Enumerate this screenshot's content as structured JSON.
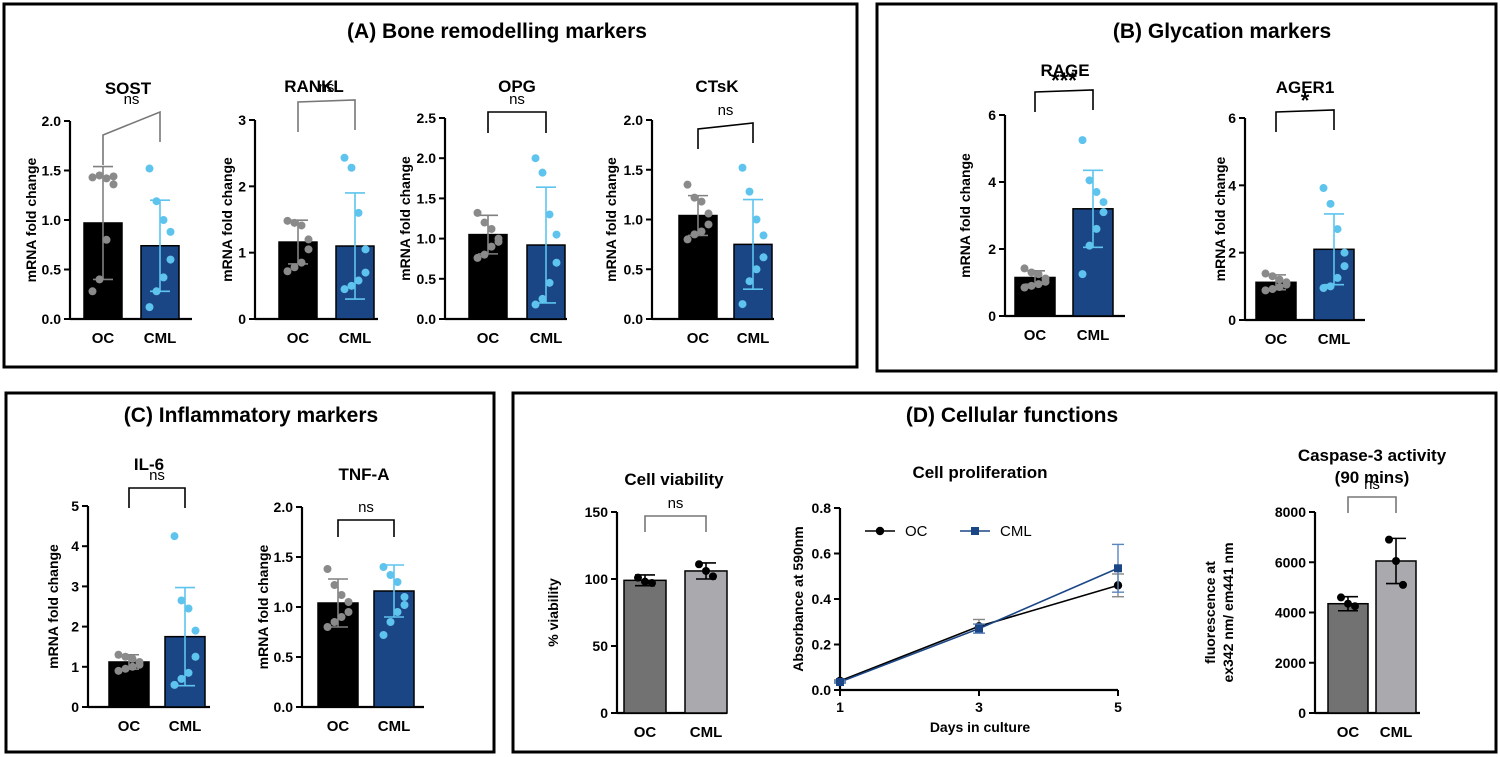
{
  "panels": [
    {
      "header": "(A) Bone remodelling markers"
    },
    {
      "header": "(B) Glycation markers"
    },
    {
      "header": "(C) Inflammatory  markers"
    },
    {
      "header": "(D) Cellular functions"
    }
  ],
  "chart_data": [
    {
      "type": "bar",
      "panel": "A",
      "title": "SOST",
      "ylabel": "mRNA fold change",
      "categories": [
        "OC",
        "CML"
      ],
      "ylim": [
        0,
        2.0
      ],
      "yticks": [
        "0.0",
        "0.5",
        "1.0",
        "1.5",
        "2.0"
      ],
      "yticks_values": [
        0,
        0.5,
        1.0,
        1.5,
        2.0
      ],
      "values": [
        0.97,
        0.74
      ],
      "errors": [
        0.57,
        0.46
      ],
      "points": [
        [
          1.43,
          1.45,
          1.42,
          1.44,
          1.36,
          0.8,
          0.4,
          0.28
        ],
        [
          1.52,
          1.19,
          1.0,
          0.88,
          0.6,
          0.42,
          0.28,
          0.12
        ]
      ],
      "significance": "ns",
      "colors": [
        "#000000",
        "#1b4686"
      ],
      "point_colors": [
        "#8a8a8a",
        "#5ec4ee"
      ],
      "err_colors": [
        "#808080",
        "#5ec4ee"
      ]
    },
    {
      "type": "bar",
      "panel": "A",
      "title": "RANKL",
      "ylabel": "mRNA fold change",
      "categories": [
        "OC",
        "CML"
      ],
      "ylim": [
        0,
        3
      ],
      "yticks": [
        "0",
        "1",
        "2",
        "3"
      ],
      "yticks_values": [
        0,
        1,
        2,
        3
      ],
      "values": [
        1.16,
        1.1
      ],
      "errors": [
        0.33,
        0.8
      ],
      "points": [
        [
          1.48,
          1.45,
          1.41,
          1.2,
          1.05,
          0.85,
          0.78,
          0.72
        ],
        [
          2.43,
          2.28,
          1.6,
          1.05,
          0.7,
          0.58,
          0.5,
          0.45
        ]
      ],
      "significance": "ns",
      "colors": [
        "#000000",
        "#1b4686"
      ],
      "point_colors": [
        "#8a8a8a",
        "#5ec4ee"
      ],
      "err_colors": [
        "#808080",
        "#5ec4ee"
      ]
    },
    {
      "type": "bar",
      "panel": "A",
      "title": "OPG",
      "ylabel": "mRNA fold change",
      "categories": [
        "OC",
        "CML"
      ],
      "ylim": [
        0,
        2.5
      ],
      "yticks": [
        "0.0",
        "0.5",
        "1.0",
        "1.5",
        "2.0",
        "2.5"
      ],
      "yticks_values": [
        0,
        0.5,
        1.0,
        1.5,
        2.0,
        2.5
      ],
      "values": [
        1.05,
        0.92
      ],
      "errors": [
        0.24,
        0.72
      ],
      "points": [
        [
          1.32,
          1.2,
          1.12,
          1.0,
          0.96,
          0.9,
          0.8,
          0.76
        ],
        [
          2.0,
          1.82,
          1.3,
          1.05,
          0.7,
          0.45,
          0.25,
          0.18
        ]
      ],
      "significance": "ns",
      "colors": [
        "#000000",
        "#1b4686"
      ],
      "point_colors": [
        "#8a8a8a",
        "#5ec4ee"
      ],
      "err_colors": [
        "#808080",
        "#5ec4ee"
      ]
    },
    {
      "type": "bar",
      "panel": "A",
      "title": "CTsK",
      "ylabel": "mRNA fold change",
      "categories": [
        "OC",
        "CML"
      ],
      "ylim": [
        0,
        2.0
      ],
      "yticks": [
        "0.0",
        "0.5",
        "1.0",
        "1.5",
        "2.0"
      ],
      "yticks_values": [
        0,
        0.5,
        1.0,
        1.5,
        2.0
      ],
      "values": [
        1.04,
        0.75
      ],
      "errors": [
        0.2,
        0.45
      ],
      "points": [
        [
          1.35,
          1.22,
          1.18,
          1.06,
          0.95,
          0.88,
          0.85,
          0.8
        ],
        [
          1.52,
          1.28,
          1.0,
          0.84,
          0.62,
          0.5,
          0.38,
          0.15
        ]
      ],
      "significance": "ns",
      "colors": [
        "#000000",
        "#1b4686"
      ],
      "point_colors": [
        "#8a8a8a",
        "#5ec4ee"
      ],
      "err_colors": [
        "#808080",
        "#5ec4ee"
      ]
    },
    {
      "type": "bar",
      "panel": "B",
      "title": "RAGE",
      "ylabel": "mRNA fold change",
      "categories": [
        "OC",
        "CML"
      ],
      "ylim": [
        0,
        6
      ],
      "yticks": [
        "0",
        "2",
        "4",
        "6"
      ],
      "yticks_values": [
        0,
        2,
        4,
        6
      ],
      "values": [
        1.15,
        3.2
      ],
      "errors": [
        0.2,
        1.15
      ],
      "points": [
        [
          1.42,
          1.3,
          1.25,
          1.12,
          1.02,
          0.95,
          0.9,
          0.85
        ],
        [
          5.25,
          4.05,
          3.7,
          3.4,
          3.1,
          2.6,
          2.1,
          1.25
        ]
      ],
      "significance": "***",
      "colors": [
        "#000000",
        "#1b4686"
      ],
      "point_colors": [
        "#8a8a8a",
        "#5ec4ee"
      ],
      "err_colors": [
        "#808080",
        "#5ec4ee"
      ]
    },
    {
      "type": "bar",
      "panel": "B",
      "title": "AGER1",
      "ylabel": "mRNA fold change",
      "categories": [
        "OC",
        "CML"
      ],
      "ylim": [
        0,
        6
      ],
      "yticks": [
        "0",
        "2",
        "4",
        "6"
      ],
      "yticks_values": [
        0,
        2,
        4,
        6
      ],
      "values": [
        1.12,
        2.1
      ],
      "errors": [
        0.22,
        1.05
      ],
      "points": [
        [
          1.38,
          1.3,
          1.2,
          1.12,
          1.05,
          0.98,
          0.92,
          0.88
        ],
        [
          3.92,
          3.45,
          2.7,
          2.0,
          1.6,
          1.25,
          1.0,
          0.95
        ]
      ],
      "significance": "*",
      "colors": [
        "#000000",
        "#1b4686"
      ],
      "point_colors": [
        "#8a8a8a",
        "#5ec4ee"
      ],
      "err_colors": [
        "#808080",
        "#5ec4ee"
      ]
    },
    {
      "type": "bar",
      "panel": "C",
      "title": "IL-6",
      "ylabel": "mRNA fold change",
      "categories": [
        "OC",
        "CML"
      ],
      "ylim": [
        0,
        5
      ],
      "yticks": [
        "0",
        "1",
        "2",
        "3",
        "4",
        "5"
      ],
      "yticks_values": [
        0,
        1,
        2,
        3,
        4,
        5
      ],
      "values": [
        1.12,
        1.75
      ],
      "errors": [
        0.18,
        1.22
      ],
      "points": [
        [
          1.3,
          1.25,
          1.2,
          1.12,
          1.05,
          1.0,
          0.95,
          0.9
        ],
        [
          4.25,
          2.65,
          2.45,
          1.9,
          1.25,
          0.85,
          0.7,
          0.55
        ]
      ],
      "significance": "ns",
      "colors": [
        "#000000",
        "#1b4686"
      ],
      "point_colors": [
        "#8a8a8a",
        "#5ec4ee"
      ],
      "err_colors": [
        "#808080",
        "#5ec4ee"
      ]
    },
    {
      "type": "bar",
      "panel": "C",
      "title": "TNF-A",
      "ylabel": "mRNA fold change",
      "categories": [
        "OC",
        "CML"
      ],
      "ylim": [
        0,
        2.0
      ],
      "yticks": [
        "0.0",
        "0.5",
        "1.0",
        "1.5",
        "2.0"
      ],
      "yticks_values": [
        0,
        0.5,
        1.0,
        1.5,
        2.0
      ],
      "values": [
        1.04,
        1.16
      ],
      "errors": [
        0.24,
        0.26
      ],
      "points": [
        [
          1.38,
          1.22,
          1.12,
          1.05,
          0.95,
          0.9,
          0.85,
          0.8
        ],
        [
          1.4,
          1.32,
          1.25,
          1.1,
          1.02,
          0.95,
          0.85,
          0.72
        ]
      ],
      "significance": "ns",
      "colors": [
        "#000000",
        "#1b4686"
      ],
      "point_colors": [
        "#8a8a8a",
        "#5ec4ee"
      ],
      "err_colors": [
        "#808080",
        "#5ec4ee"
      ]
    },
    {
      "type": "bar",
      "panel": "D",
      "title": "Cell viability",
      "ylabel": "% viability",
      "categories": [
        "OC",
        "CML"
      ],
      "ylim": [
        0,
        150
      ],
      "yticks": [
        "0",
        "50",
        "100",
        "150"
      ],
      "yticks_values": [
        0,
        50,
        100,
        150
      ],
      "values": [
        99,
        106
      ],
      "errors": [
        4,
        6
      ],
      "points": [
        [
          101,
          98,
          97
        ],
        [
          111,
          106,
          102
        ]
      ],
      "significance": "ns",
      "colors": [
        "#727272",
        "#a9a9ae"
      ],
      "point_colors": [
        "#000000",
        "#000000"
      ],
      "err_colors": [
        "#000000",
        "#000000"
      ]
    },
    {
      "type": "line",
      "panel": "D",
      "title": "Cell proliferation",
      "xlabel": "Days in culture",
      "ylabel": "Absorbance at 590nm",
      "x": [
        1,
        3,
        5
      ],
      "xticks": [
        "1",
        "3",
        "5"
      ],
      "xlim": [
        1,
        5
      ],
      "ylim": [
        0,
        0.8
      ],
      "yticks": [
        "0.0",
        "0.2",
        "0.4",
        "0.6",
        "0.8"
      ],
      "yticks_values": [
        0,
        0.2,
        0.4,
        0.6,
        0.8
      ],
      "series": [
        {
          "name": "OC",
          "values": [
            0.04,
            0.28,
            0.46
          ],
          "errors": [
            0.005,
            0.03,
            0.05
          ],
          "color": "#000000",
          "marker": "circle"
        },
        {
          "name": "CML",
          "values": [
            0.035,
            0.27,
            0.535
          ],
          "errors": [
            0.005,
            0.02,
            0.105
          ],
          "color": "#1b4686",
          "marker": "square"
        }
      ],
      "legend_placement": "top"
    },
    {
      "type": "bar",
      "panel": "D",
      "title": "Caspase-3 activity",
      "subtitle": "(90 mins)",
      "ylabel": "fluorescence at",
      "ylabel2": "ex342 nm/ em441 nm",
      "categories": [
        "OC",
        "CML"
      ],
      "ylim": [
        0,
        8000
      ],
      "yticks": [
        "0",
        "2000",
        "4000",
        "6000",
        "8000"
      ],
      "yticks_values": [
        0,
        2000,
        4000,
        6000,
        8000
      ],
      "values": [
        4350,
        6050
      ],
      "errors": [
        280,
        900
      ],
      "points": [
        [
          4600,
          4350,
          4250
        ],
        [
          6900,
          6050,
          5100
        ]
      ],
      "significance": "ns",
      "colors": [
        "#727272",
        "#a9a9ae"
      ],
      "point_colors": [
        "#000000",
        "#000000"
      ],
      "err_colors": [
        "#000000",
        "#000000"
      ]
    }
  ]
}
